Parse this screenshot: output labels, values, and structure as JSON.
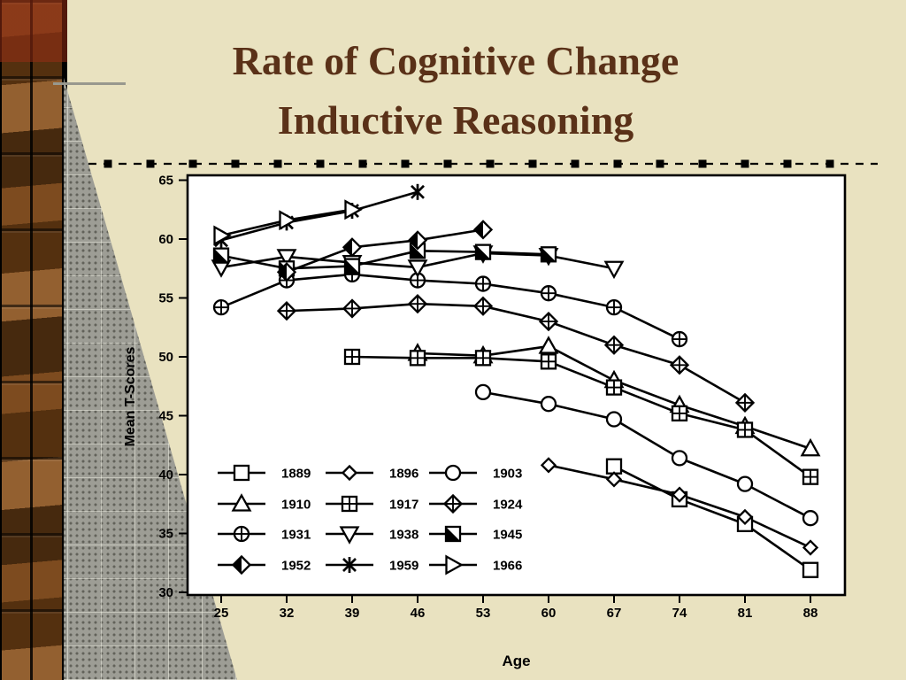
{
  "slide": {
    "title_line1": "Rate of Cognitive Change",
    "title_line2": "Inductive Reasoning"
  },
  "colors": {
    "background": "#e9e2c0",
    "title_text": "#5a3118",
    "plot_background": "#ffffff",
    "line_color": "#000000",
    "triangle_gray": "#9d9d95",
    "border_brown": "#6f451c"
  },
  "chart_data": {
    "type": "line",
    "title": "",
    "xlabel": "Age",
    "ylabel": "Mean T-Scores",
    "xlim": [
      25,
      88
    ],
    "ylim": [
      30,
      65
    ],
    "x_ticks": [
      25,
      32,
      39,
      46,
      53,
      60,
      67,
      74,
      81,
      88
    ],
    "y_ticks": [
      30,
      35,
      40,
      45,
      50,
      55,
      60,
      65
    ],
    "grid": false,
    "legend_position": "inside-lower-left",
    "legend_rows": 4,
    "legend_cols": 3,
    "series": [
      {
        "name": "1889",
        "marker": "open-square",
        "points": [
          [
            67,
            40.7
          ],
          [
            74,
            37.9
          ],
          [
            81,
            35.8
          ],
          [
            88,
            31.9
          ]
        ]
      },
      {
        "name": "1896",
        "marker": "open-diamond",
        "points": [
          [
            60,
            40.8
          ],
          [
            67,
            39.6
          ],
          [
            74,
            38.3
          ],
          [
            81,
            36.4
          ],
          [
            88,
            33.8
          ]
        ]
      },
      {
        "name": "1903",
        "marker": "open-circle",
        "points": [
          [
            53,
            47.0
          ],
          [
            60,
            46.0
          ],
          [
            67,
            44.7
          ],
          [
            74,
            41.4
          ],
          [
            81,
            39.2
          ],
          [
            88,
            36.3
          ]
        ]
      },
      {
        "name": "1910",
        "marker": "open-triangle-up",
        "points": [
          [
            46,
            50.3
          ],
          [
            53,
            50.1
          ],
          [
            60,
            50.9
          ],
          [
            67,
            48.0
          ],
          [
            74,
            45.9
          ],
          [
            81,
            44.1
          ],
          [
            88,
            42.2
          ]
        ]
      },
      {
        "name": "1917",
        "marker": "square-cross",
        "points": [
          [
            39,
            50.0
          ],
          [
            46,
            49.9
          ],
          [
            53,
            49.9
          ],
          [
            60,
            49.6
          ],
          [
            67,
            47.4
          ],
          [
            74,
            45.2
          ],
          [
            81,
            43.8
          ],
          [
            88,
            39.8
          ]
        ]
      },
      {
        "name": "1924",
        "marker": "diamond-cross",
        "points": [
          [
            32,
            53.9
          ],
          [
            39,
            54.1
          ],
          [
            46,
            54.5
          ],
          [
            53,
            54.3
          ],
          [
            60,
            53.0
          ],
          [
            67,
            51.0
          ],
          [
            74,
            49.3
          ],
          [
            81,
            46.1
          ]
        ]
      },
      {
        "name": "1931",
        "marker": "circle-plus",
        "points": [
          [
            25,
            54.2
          ],
          [
            32,
            56.5
          ],
          [
            39,
            57.0
          ],
          [
            46,
            56.5
          ],
          [
            53,
            56.2
          ],
          [
            60,
            55.4
          ],
          [
            67,
            54.2
          ],
          [
            74,
            51.5
          ]
        ]
      },
      {
        "name": "1938",
        "marker": "open-triangle-down",
        "points": [
          [
            25,
            57.6
          ],
          [
            32,
            58.5
          ],
          [
            39,
            58.0
          ],
          [
            46,
            57.6
          ],
          [
            53,
            58.8
          ],
          [
            60,
            58.6
          ],
          [
            67,
            57.5
          ]
        ]
      },
      {
        "name": "1945",
        "marker": "square-half-filled",
        "points": [
          [
            25,
            58.6
          ],
          [
            32,
            57.5
          ],
          [
            39,
            57.7
          ],
          [
            46,
            59.0
          ],
          [
            53,
            58.9
          ],
          [
            60,
            58.7
          ]
        ]
      },
      {
        "name": "1952",
        "marker": "diamond-half-filled",
        "points": [
          [
            32,
            57.2
          ],
          [
            39,
            59.3
          ],
          [
            46,
            59.9
          ],
          [
            53,
            60.8
          ]
        ]
      },
      {
        "name": "1959",
        "marker": "asterisk",
        "points": [
          [
            25,
            59.9
          ],
          [
            32,
            61.4
          ],
          [
            39,
            62.4
          ],
          [
            46,
            64.0
          ]
        ]
      },
      {
        "name": "1966",
        "marker": "open-triangle-right",
        "points": [
          [
            25,
            60.3
          ],
          [
            32,
            61.6
          ],
          [
            39,
            62.5
          ]
        ]
      }
    ]
  }
}
